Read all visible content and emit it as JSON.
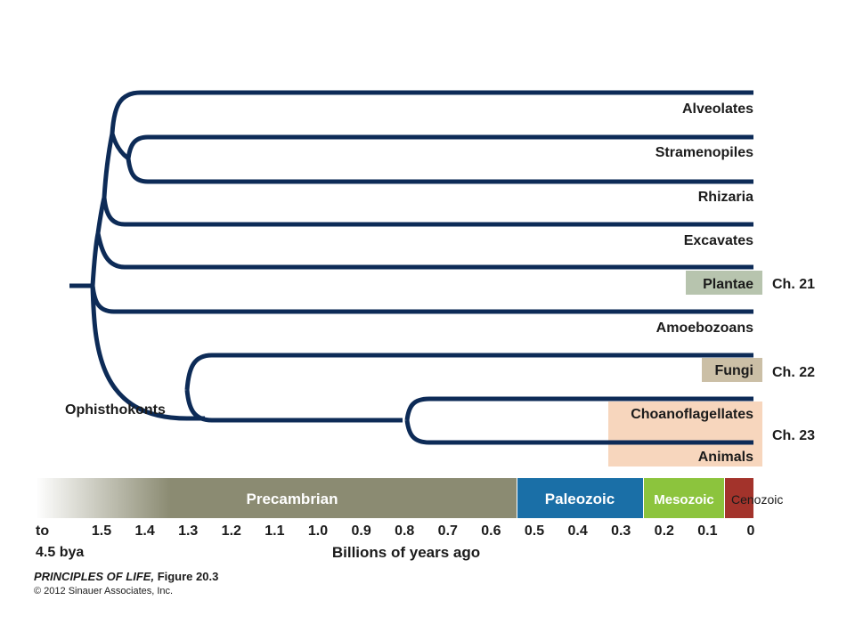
{
  "colors": {
    "branch": "#0d2b57",
    "plantae_box": "#b7c4ae",
    "fungi_box": "#cbbfa6",
    "animal_box": "#f7d6bd",
    "precambrian": "#8b8b72",
    "paleozoic": "#1a6fa7",
    "mesozoic": "#8cc43d",
    "cenozoic": "#a3332b"
  },
  "taxa": {
    "alveolates": "Alveolates",
    "stramenopiles": "Stramenopiles",
    "rhizaria": "Rhizaria",
    "excavates": "Excavates",
    "plantae": "Plantae",
    "amoebozoans": "Amoebozoans",
    "fungi": "Fungi",
    "choanoflagellates": "Choanoflagellates",
    "animals": "Animals"
  },
  "clade_labels": {
    "opisthokonts": "Ophisthokonts"
  },
  "chapters": {
    "plantae": "Ch. 21",
    "fungi": "Ch. 22",
    "animals": "Ch. 23"
  },
  "eras": {
    "precambrian": "Precambrian",
    "paleozoic": "Paleozoic",
    "mesozoic": "Mesozoic",
    "cenozoic": "Cenozoic"
  },
  "axis": {
    "start_line1": "to",
    "start_line2": "4.5 bya",
    "ticks": [
      "1.5",
      "1.4",
      "1.3",
      "1.2",
      "1.1",
      "1.0",
      "0.9",
      "0.8",
      "0.7",
      "0.6",
      "0.5",
      "0.4",
      "0.3",
      "0.2",
      "0.1",
      "0"
    ],
    "title": "Billions of years ago"
  },
  "credit": {
    "title_italic": "PRINCIPLES OF LIFE,",
    "title_normal": " Figure 20.3",
    "copyright": "© 2012 Sinauer Associates, Inc."
  }
}
